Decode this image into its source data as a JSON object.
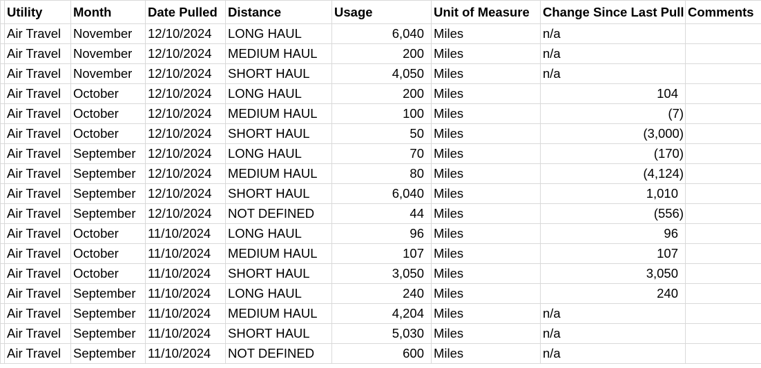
{
  "table": {
    "header": [
      "Utility",
      "Month",
      "Date Pulled",
      "Distance",
      "Usage",
      "Unit of Measure",
      "Change Since Last Pull",
      "Comments"
    ],
    "rows": [
      [
        "Air Travel",
        "November",
        "12/10/2024",
        "LONG HAUL",
        "6,040",
        "Miles",
        "n/a"
      ],
      [
        "Air Travel",
        "November",
        "12/10/2024",
        "MEDIUM HAUL",
        "200",
        "Miles",
        "n/a"
      ],
      [
        "Air Travel",
        "November",
        "12/10/2024",
        "SHORT HAUL",
        "4,050",
        "Miles",
        "n/a"
      ],
      [
        "Air Travel",
        "October",
        "12/10/2024",
        "LONG HAUL",
        "200",
        "Miles",
        "104"
      ],
      [
        "Air Travel",
        "October",
        "12/10/2024",
        "MEDIUM HAUL",
        "100",
        "Miles",
        "(7)"
      ],
      [
        "Air Travel",
        "October",
        "12/10/2024",
        "SHORT HAUL",
        "50",
        "Miles",
        "(3,000)"
      ],
      [
        "Air Travel",
        "September",
        "12/10/2024",
        "LONG HAUL",
        "70",
        "Miles",
        "(170)"
      ],
      [
        "Air Travel",
        "September",
        "12/10/2024",
        "MEDIUM HAUL",
        "80",
        "Miles",
        "(4,124)"
      ],
      [
        "Air Travel",
        "September",
        "12/10/2024",
        "SHORT HAUL",
        "6,040",
        "Miles",
        "1,010"
      ],
      [
        "Air Travel",
        "September",
        "12/10/2024",
        "NOT DEFINED",
        "44",
        "Miles",
        "(556)"
      ],
      [
        "Air Travel",
        "October",
        "11/10/2024",
        "LONG HAUL",
        "96",
        "Miles",
        "96"
      ],
      [
        "Air Travel",
        "October",
        "11/10/2024",
        "MEDIUM HAUL",
        "107",
        "Miles",
        "107"
      ],
      [
        "Air Travel",
        "October",
        "11/10/2024",
        "SHORT HAUL",
        "3,050",
        "Miles",
        "3,050"
      ],
      [
        "Air Travel",
        "September",
        "11/10/2024",
        "LONG HAUL",
        "240",
        "Miles",
        "240"
      ],
      [
        "Air Travel",
        "September",
        "11/10/2024",
        "MEDIUM HAUL",
        "4,204",
        "Miles",
        "n/a"
      ],
      [
        "Air Travel",
        "September",
        "11/10/2024",
        "SHORT HAUL",
        "5,030",
        "Miles",
        "n/a"
      ],
      [
        "Air Travel",
        "September",
        "11/10/2024",
        "NOT DEFINED",
        "600",
        "Miles",
        "n/a"
      ]
    ]
  }
}
